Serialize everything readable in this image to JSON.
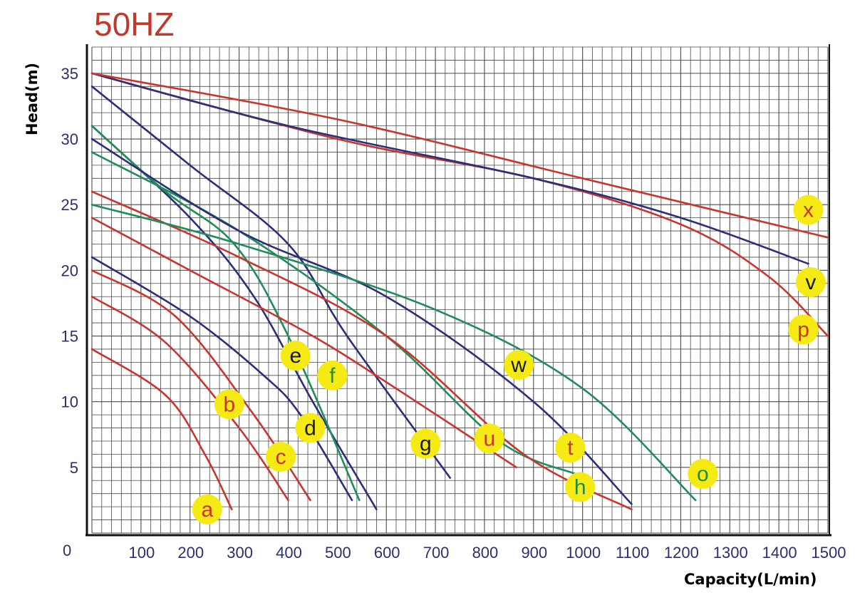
{
  "chart_data": {
    "type": "line",
    "title": "50HZ",
    "xlabel": "Capacity(L/min)",
    "ylabel": "Head(m)",
    "xlim": [
      0,
      1500
    ],
    "ylim": [
      0,
      37
    ],
    "x_ticks": [
      100,
      200,
      300,
      400,
      500,
      600,
      700,
      800,
      900,
      1000,
      1100,
      1200,
      1300,
      1400,
      1500
    ],
    "y_ticks": [
      5,
      10,
      15,
      20,
      25,
      30,
      35
    ],
    "origin_label": "0",
    "grid": true,
    "colors": {
      "red": "#c9352e",
      "navy": "#2b2f7a",
      "green": "#1f8c5a",
      "label_bg": "#f5ea14",
      "title": "#c0392b"
    },
    "series": [
      {
        "name": "a",
        "color": "red",
        "points": [
          [
            0,
            14
          ],
          [
            150,
            10.5
          ],
          [
            230,
            6
          ],
          [
            285,
            1.8
          ]
        ],
        "label_at": [
          235,
          1.8
        ]
      },
      {
        "name": "b",
        "color": "red",
        "points": [
          [
            0,
            18
          ],
          [
            150,
            14.5
          ],
          [
            300,
            8
          ],
          [
            400,
            2.5
          ]
        ],
        "label_at": [
          280,
          9.8
        ]
      },
      {
        "name": "c",
        "color": "red",
        "points": [
          [
            0,
            20
          ],
          [
            170,
            16.5
          ],
          [
            330,
            9
          ],
          [
            445,
            2.5
          ]
        ],
        "label_at": [
          385,
          5.8
        ]
      },
      {
        "name": "d",
        "color": "navy",
        "points": [
          [
            0,
            21
          ],
          [
            200,
            16.5
          ],
          [
            350,
            12
          ],
          [
            425,
            9
          ],
          [
            530,
            2.5
          ]
        ],
        "label_at": [
          445,
          8
        ]
      },
      {
        "name": "e",
        "color": "navy",
        "points": [
          [
            0,
            31
          ],
          [
            200,
            24
          ],
          [
            330,
            18
          ],
          [
            450,
            10
          ],
          [
            580,
            1.8
          ]
        ],
        "label_at": [
          415,
          13.5
        ]
      },
      {
        "name": "f",
        "color": "green",
        "points": [
          [
            0,
            31
          ],
          [
            150,
            26
          ],
          [
            290,
            22
          ],
          [
            400,
            15
          ],
          [
            545,
            2.5
          ]
        ],
        "label_at": [
          490,
          12
        ]
      },
      {
        "name": "g",
        "color": "navy",
        "points": [
          [
            0,
            34
          ],
          [
            200,
            28
          ],
          [
            400,
            22
          ],
          [
            520,
            15
          ],
          [
            730,
            4.2
          ]
        ],
        "label_at": [
          680,
          6.8
        ]
      },
      {
        "name": "u",
        "color": "red",
        "points": [
          [
            0,
            24
          ],
          [
            200,
            20
          ],
          [
            450,
            15
          ],
          [
            620,
            11
          ],
          [
            865,
            5
          ]
        ],
        "label_at": [
          810,
          7.2
        ]
      },
      {
        "name": "h",
        "color": "green",
        "points": [
          [
            0,
            29
          ],
          [
            300,
            23
          ],
          [
            600,
            15
          ],
          [
            830,
            7
          ],
          [
            985,
            4.5
          ]
        ],
        "label_at": [
          995,
          3.5
        ]
      },
      {
        "name": "t",
        "color": "red",
        "points": [
          [
            0,
            26
          ],
          [
            300,
            21
          ],
          [
            600,
            15
          ],
          [
            880,
            6
          ],
          [
            1100,
            1.8
          ]
        ],
        "label_at": [
          975,
          6.5
        ]
      },
      {
        "name": "w",
        "color": "navy",
        "points": [
          [
            0,
            30
          ],
          [
            300,
            23
          ],
          [
            600,
            18
          ],
          [
            900,
            10
          ],
          [
            1100,
            2.2
          ]
        ],
        "label_at": [
          870,
          12.8
        ]
      },
      {
        "name": "o",
        "color": "green",
        "points": [
          [
            0,
            25
          ],
          [
            300,
            22
          ],
          [
            700,
            17
          ],
          [
            1000,
            11
          ],
          [
            1230,
            2.5
          ]
        ],
        "label_at": [
          1245,
          4.5
        ]
      },
      {
        "name": "p",
        "color": "red",
        "points": [
          [
            0,
            35
          ],
          [
            500,
            30
          ],
          [
            900,
            27
          ],
          [
            1200,
            23.5
          ],
          [
            1380,
            19.5
          ],
          [
            1500,
            15
          ]
        ],
        "label_at": [
          1450,
          15.5
        ]
      },
      {
        "name": "v",
        "color": "navy",
        "points": [
          [
            0,
            35
          ],
          [
            400,
            31
          ],
          [
            900,
            27
          ],
          [
            1200,
            24
          ],
          [
            1460,
            20.5
          ]
        ],
        "label_at": [
          1465,
          19.1
        ]
      },
      {
        "name": "x",
        "color": "red",
        "points": [
          [
            0,
            35
          ],
          [
            500,
            31.5
          ],
          [
            1000,
            27
          ],
          [
            1500,
            22.5
          ]
        ],
        "label_at": [
          1460,
          24.6
        ]
      }
    ]
  }
}
